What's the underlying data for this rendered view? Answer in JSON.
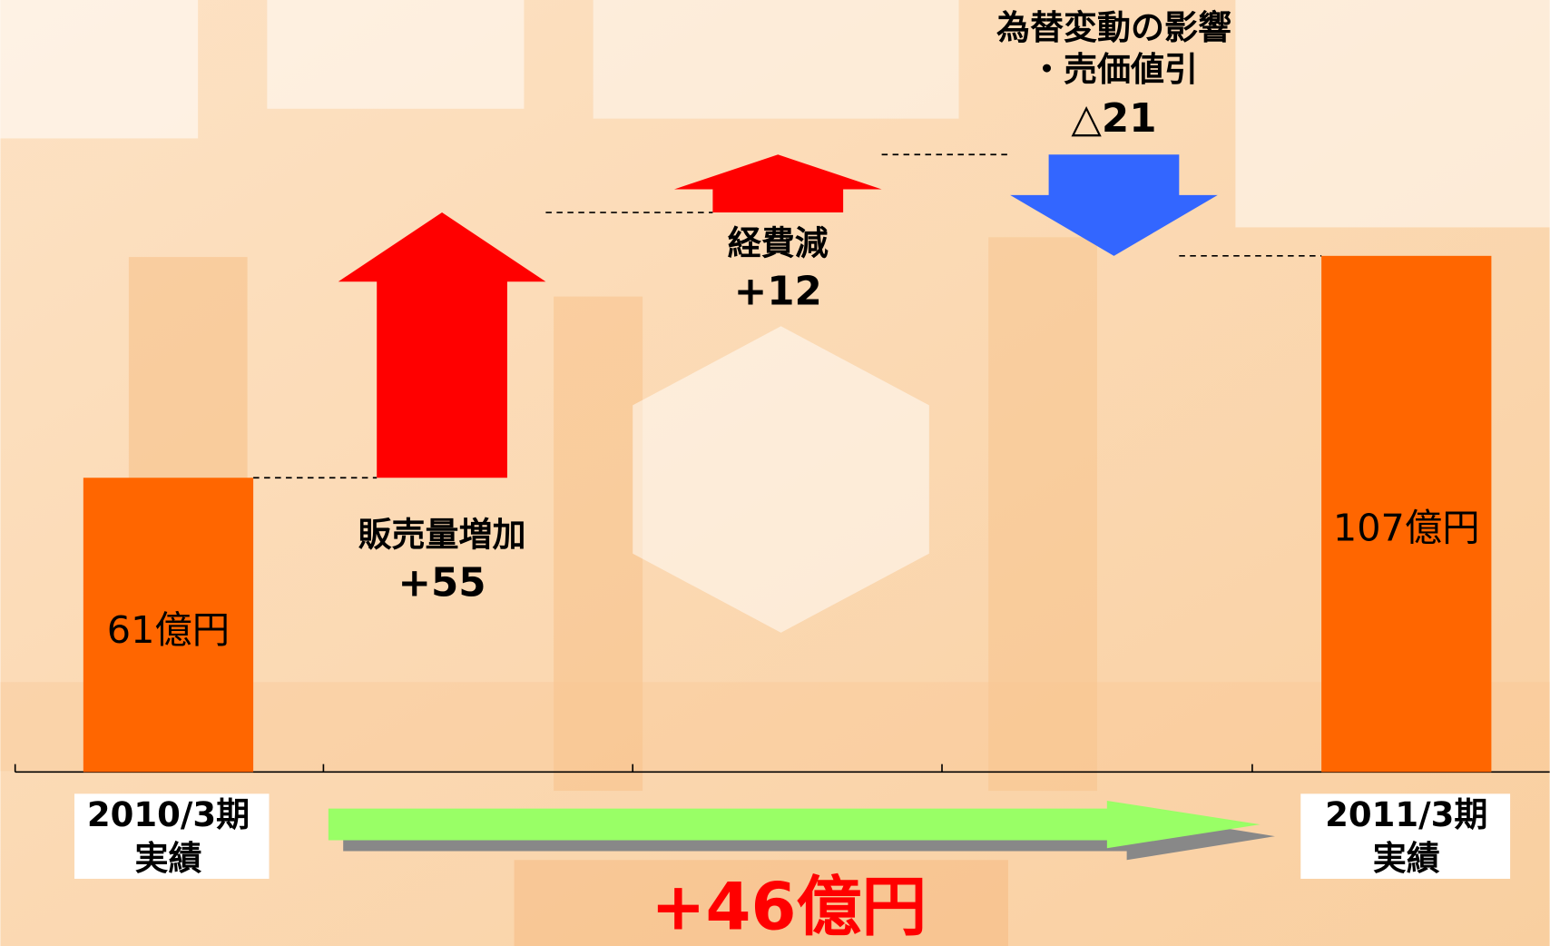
{
  "chart_data": {
    "type": "waterfall",
    "categories": [
      [
        "2010/3期",
        "実績"
      ],
      [
        "販売量増加"
      ],
      [
        "経費減"
      ],
      [
        "為替変動の影響",
        "・売価値引"
      ],
      [
        "2011/3期",
        "実績"
      ]
    ],
    "values": [
      61,
      55,
      12,
      -21,
      107
    ],
    "value_labels": [
      "61億円",
      "+55",
      "+12",
      "△21",
      "107億円"
    ],
    "total_flags": [
      true,
      false,
      false,
      false,
      true
    ],
    "change": 46,
    "change_label": "+46億円",
    "bar_color": "#ff6600",
    "increase_color": "#ff0000",
    "decrease_color": "#3366ff",
    "change_color": "#99ff66"
  }
}
